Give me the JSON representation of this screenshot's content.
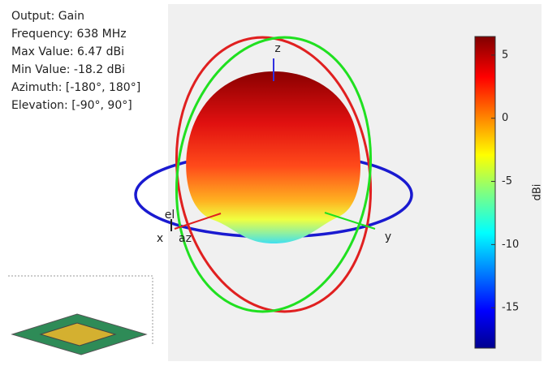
{
  "info": {
    "lines": [
      "Output: Gain",
      "Frequency: 638 MHz",
      "Max Value: 6.47 dBi",
      "Min Value: -18.2 dBi",
      "Azimuth: [-180°, 180°]",
      "Elevation: [-90°, 90°]"
    ]
  },
  "chart_data": {
    "type": "pattern3d",
    "axis_labels": {
      "x": "x",
      "y": "y",
      "z": "z",
      "az": "az",
      "el": "el"
    },
    "colorbar": {
      "label": "dBi",
      "clim": [
        -18.2,
        6.47
      ],
      "ticks": [
        5,
        0,
        -5,
        -10,
        -15
      ]
    }
  }
}
